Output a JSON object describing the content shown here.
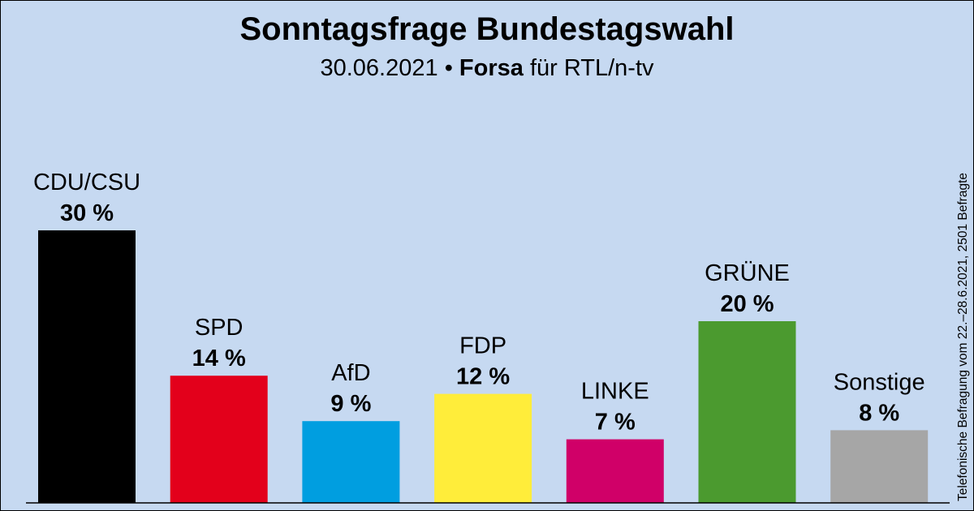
{
  "colors": {
    "background": "#c6d9f1",
    "CDU/CSU": "#000000",
    "SPD": "#e3001b",
    "AfD": "#009ee0",
    "FDP": "#ffed3a",
    "LINKE": "#d00068",
    "GRÜNE": "#4b9a2f",
    "Sonstige": "#a6a6a6"
  },
  "chart_data": {
    "type": "bar",
    "title": "Sonntagsfrage Bundestagswahl",
    "subtitle_date": "30.06.2021",
    "subtitle_separator": "•",
    "subtitle_institute": "Forsa",
    "subtitle_client": "für RTL/n-tv",
    "note": "Telefonische Befragung vom 22.–28.6.2021, 2501 Befragte",
    "categories": [
      "CDU/CSU",
      "SPD",
      "AfD",
      "FDP",
      "LINKE",
      "GRÜNE",
      "Sonstige"
    ],
    "values": [
      30,
      14,
      9,
      12,
      7,
      20,
      8
    ],
    "value_labels": [
      "30 %",
      "14 %",
      "9 %",
      "12 %",
      "7 %",
      "20 %",
      "8 %"
    ],
    "unit": "%",
    "ylim": [
      0,
      30
    ],
    "grid": false,
    "legend": "none"
  }
}
